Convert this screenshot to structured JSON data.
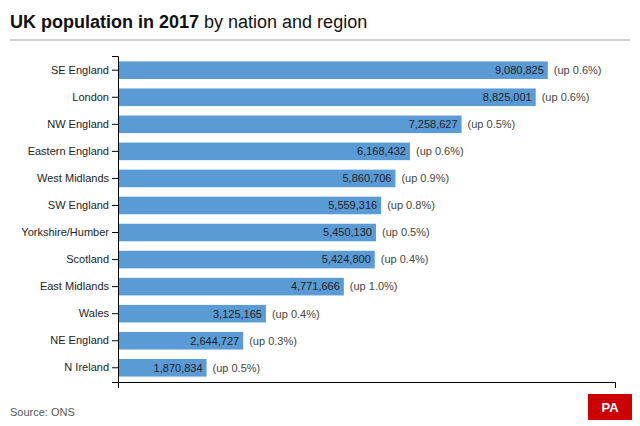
{
  "chart_data": {
    "type": "bar",
    "orientation": "horizontal",
    "title": "UK population in 2017",
    "subtitle": "by nation and region",
    "categories": [
      "SE England",
      "London",
      "NW England",
      "Eastern England",
      "West Midlands",
      "SW England",
      "Yorkshire/Humber",
      "Scotland",
      "East Midlands",
      "Wales",
      "NE England",
      "N Ireland"
    ],
    "values": [
      9080825,
      8825001,
      7258627,
      6168432,
      5860706,
      5559316,
      5450130,
      5424800,
      4771666,
      3125165,
      2644727,
      1870834
    ],
    "value_labels": [
      "9,080,825",
      "8,825,001",
      "7,258,627",
      "6,168,432",
      "5,860,706",
      "5,559,316",
      "5,450,130",
      "5,424,800",
      "4,771,666",
      "3,125,165",
      "2,644,727",
      "1,870,834"
    ],
    "change_labels": [
      "(up 0.6%)",
      "(up 0.6%)",
      "(up 0.5%)",
      "(up 0.6%)",
      "(up 0.9%)",
      "(up 0.8%)",
      "(up 0.5%)",
      "(up 0.4%)",
      "(up 1.0%)",
      "(up 0.4%)",
      "(up 0.3%)",
      "(up 0.5%)"
    ],
    "color": "#5b9bd5",
    "xlim": [
      0,
      10500000
    ],
    "data_labels": true,
    "tick_labels": "y",
    "grid": false,
    "source": "Source: ONS",
    "badge": "PA"
  }
}
